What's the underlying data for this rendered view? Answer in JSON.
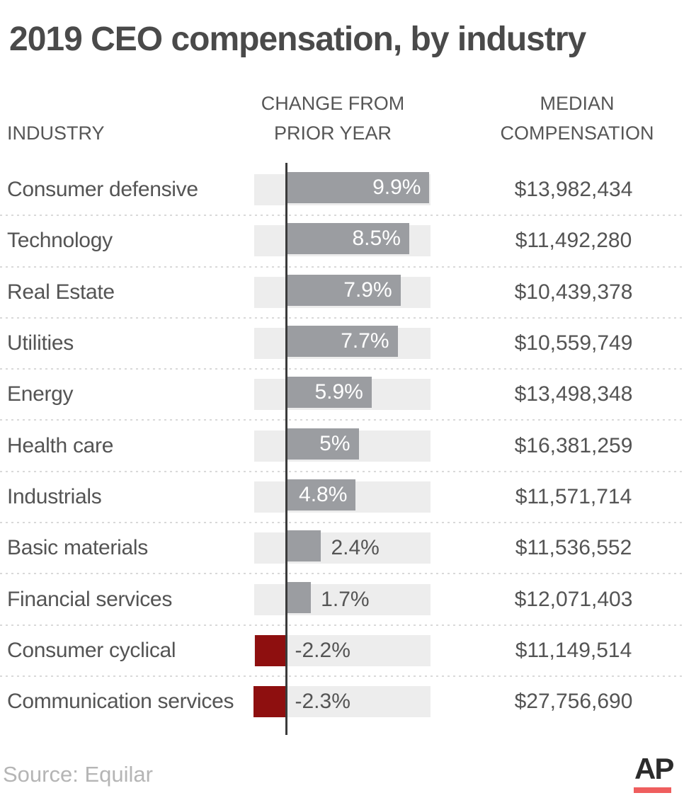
{
  "title": "2019 CEO compensation, by industry",
  "columns": {
    "industry": "INDUSTRY",
    "change_line1": "CHANGE FROM",
    "change_line2": "PRIOR YEAR",
    "median_line1": "MEDIAN",
    "median_line2": "COMPENSATION"
  },
  "rows": [
    {
      "industry": "Consumer defensive",
      "change_label": "9.9%",
      "change_value": 9.9,
      "median": "$13,982,434"
    },
    {
      "industry": "Technology",
      "change_label": "8.5%",
      "change_value": 8.5,
      "median": "$11,492,280"
    },
    {
      "industry": "Real Estate",
      "change_label": "7.9%",
      "change_value": 7.9,
      "median": "$10,439,378"
    },
    {
      "industry": "Utilities",
      "change_label": "7.7%",
      "change_value": 7.7,
      "median": "$10,559,749"
    },
    {
      "industry": "Energy",
      "change_label": "5.9%",
      "change_value": 5.9,
      "median": "$13,498,348"
    },
    {
      "industry": "Health care",
      "change_label": "5%",
      "change_value": 5.0,
      "median": "$16,381,259"
    },
    {
      "industry": "Industrials",
      "change_label": "4.8%",
      "change_value": 4.8,
      "median": "$11,571,714"
    },
    {
      "industry": "Basic materials",
      "change_label": "2.4%",
      "change_value": 2.4,
      "median": "$11,536,552"
    },
    {
      "industry": "Financial services",
      "change_label": "1.7%",
      "change_value": 1.7,
      "median": "$12,071,403"
    },
    {
      "industry": "Consumer cyclical",
      "change_label": "-2.2%",
      "change_value": -2.2,
      "median": "$11,149,514"
    },
    {
      "industry": "Communication services",
      "change_label": "-2.3%",
      "change_value": -2.3,
      "median": "$27,756,690"
    }
  ],
  "chart_data": {
    "type": "bar",
    "orientation": "horizontal",
    "title": "2019 CEO compensation, by industry",
    "categories": [
      "Consumer defensive",
      "Technology",
      "Real Estate",
      "Utilities",
      "Energy",
      "Health care",
      "Industrials",
      "Basic materials",
      "Financial services",
      "Consumer cyclical",
      "Communication services"
    ],
    "series": [
      {
        "name": "Change from prior year (%)",
        "values": [
          9.9,
          8.5,
          7.9,
          7.7,
          5.9,
          5.0,
          4.8,
          2.4,
          1.7,
          -2.2,
          -2.3
        ]
      },
      {
        "name": "Median compensation (USD)",
        "values": [
          13982434,
          11492280,
          10439378,
          10559749,
          13498348,
          16381259,
          11571714,
          11536552,
          12071403,
          11149514,
          27756690
        ]
      }
    ],
    "xlim": [
      -2.3,
      9.9
    ],
    "grid": false,
    "legend": false,
    "annotations": [
      "zero baseline drawn as dark vertical rule",
      "full-range light gray track behind each bar",
      "dotted separators between rows"
    ]
  },
  "source": "Source: Equilar",
  "logo": "AP",
  "colors": {
    "positive_bar": "#9b9da1",
    "negative_bar": "#8e0f0f",
    "track": "#ededed",
    "axis": "#3b3b3b",
    "title_text": "#4a4a4a",
    "header_text": "#565656",
    "body_text": "#545454",
    "label_inside": "#ffffff",
    "separator": "#d9d9d9",
    "source_text": "#b5b5b5",
    "logo_text": "#2b2b2b",
    "logo_underline": "#ef5e5e"
  }
}
